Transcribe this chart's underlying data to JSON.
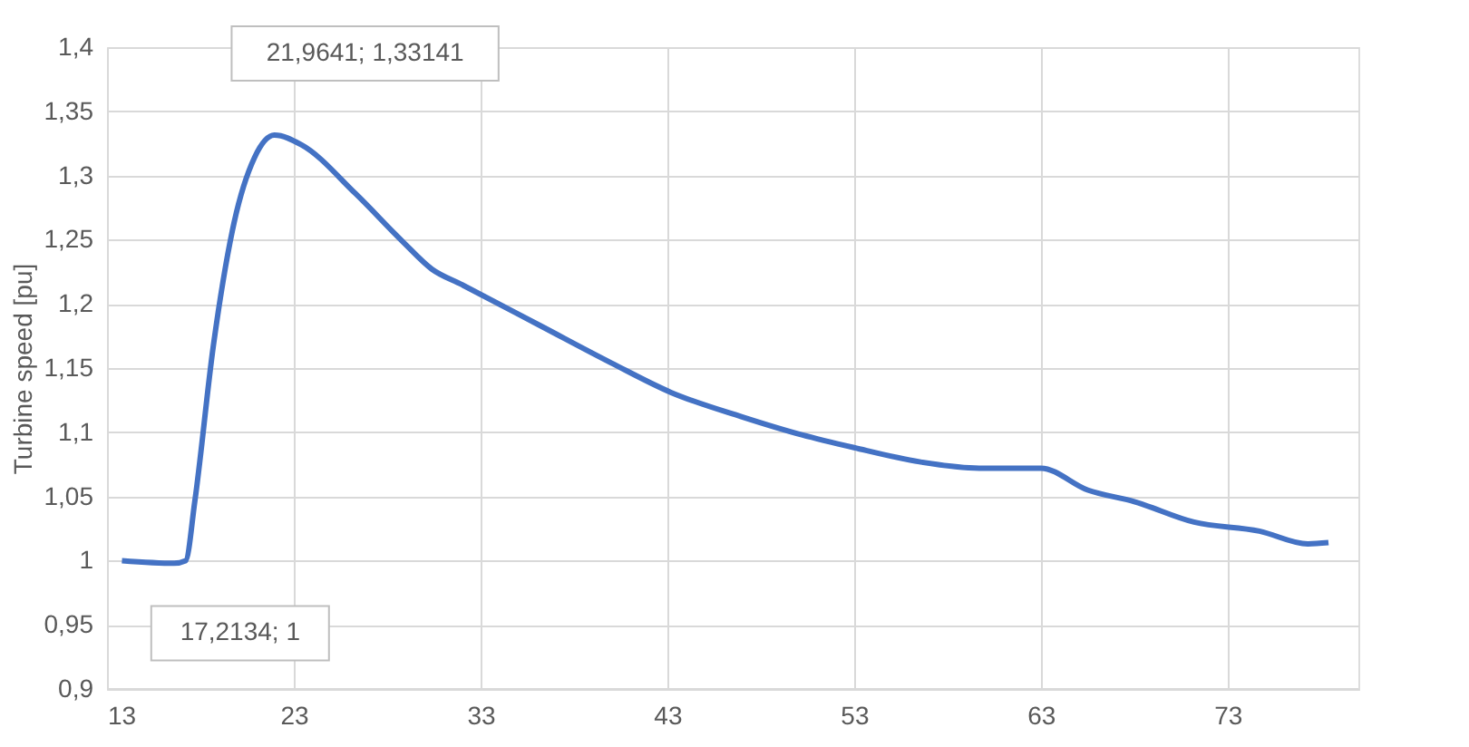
{
  "chart_data": {
    "type": "line",
    "ylabel": "Turbine speed [pu]",
    "x": [
      13.8,
      16.6,
      17.2134,
      17.7,
      18.7,
      19.8,
      20.9,
      21.9641,
      23.4,
      26.3,
      28.8,
      30.4,
      32,
      36.2,
      40,
      43.2,
      47,
      50.2,
      53,
      56.5,
      59.7,
      63,
      65.5,
      68,
      71.2,
      74.7,
      77.3,
      78.4
    ],
    "series": [
      {
        "color": "#4472c4",
        "values": [
          1.0,
          0.998,
          1,
          1.046,
          1.168,
          1.263,
          1.314,
          1.33141,
          1.324,
          1.286,
          1.249,
          1.227,
          1.215,
          1.183,
          1.154,
          1.131,
          1.112,
          1.098,
          1.088,
          1.077,
          1.072,
          1.072,
          1.055,
          1.046,
          1.03,
          1.023,
          1.013,
          1.014
        ]
      }
    ],
    "xlim": [
      13,
      80
    ],
    "xticks": [
      13,
      23,
      33,
      43,
      53,
      63,
      73
    ],
    "ylim": [
      0.9,
      1.4
    ],
    "yticks": [
      {
        "value": 0.9,
        "label": "0,9"
      },
      {
        "value": 0.95,
        "label": "0,95"
      },
      {
        "value": 1,
        "label": "1"
      },
      {
        "value": 1.05,
        "label": "1,05"
      },
      {
        "value": 1.1,
        "label": "1,1"
      },
      {
        "value": 1.15,
        "label": "1,15"
      },
      {
        "value": 1.2,
        "label": "1,2"
      },
      {
        "value": 1.25,
        "label": "1,25"
      },
      {
        "value": 1.3,
        "label": "1,3"
      },
      {
        "value": 1.35,
        "label": "1,35"
      },
      {
        "value": 1.4,
        "label": "1,4"
      }
    ],
    "annotations": [
      {
        "text": "21,9641; 1,33141",
        "x": 21.9641,
        "y": 1.33141
      },
      {
        "text": "17,2134; 1",
        "x": 17.2134,
        "y": 1
      }
    ],
    "grid": true,
    "line_style": "solid",
    "marker": "none"
  }
}
